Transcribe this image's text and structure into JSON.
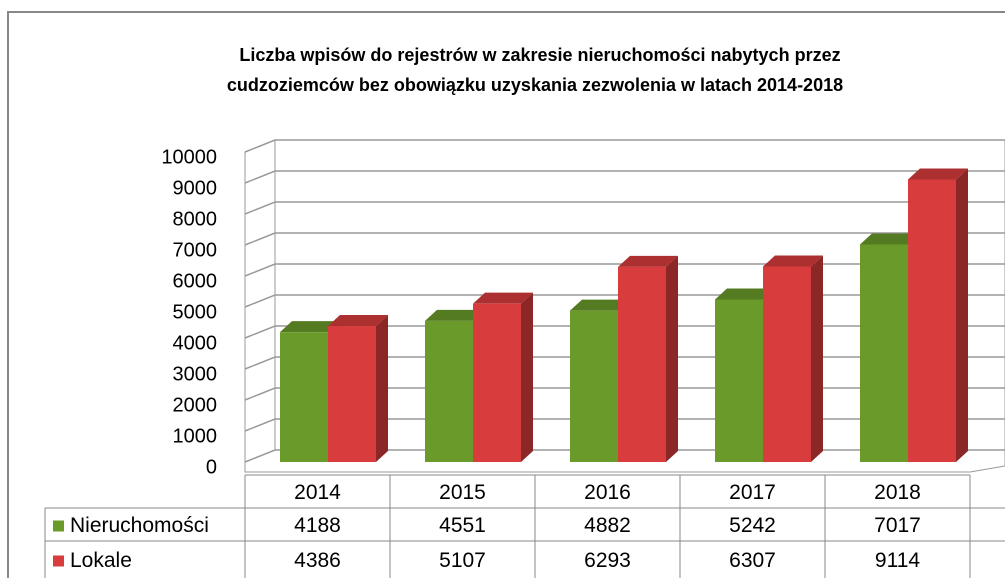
{
  "chart_data": {
    "type": "bar3d",
    "title": [
      "Liczba wpisów do rejestrów  w zakresie nieruchomości nabytych przez",
      "cudzoziemców bez obowiązku uzyskania zezwolenia w latach 2014-2018"
    ],
    "categories": [
      "2014",
      "2015",
      "2016",
      "2017",
      "2018"
    ],
    "series": [
      {
        "name": "Nieruchomości",
        "color": "#6a9a2a",
        "values": [
          4188,
          4551,
          4882,
          5242,
          7017
        ]
      },
      {
        "name": "Lokale",
        "color": "#d83c3c",
        "values": [
          4386,
          5107,
          6293,
          6307,
          9114
        ]
      }
    ],
    "ylim": [
      0,
      10000
    ],
    "yticks": [
      0,
      1000,
      2000,
      3000,
      4000,
      5000,
      6000,
      7000,
      8000,
      9000,
      10000
    ],
    "grid": true,
    "data_table": true
  }
}
